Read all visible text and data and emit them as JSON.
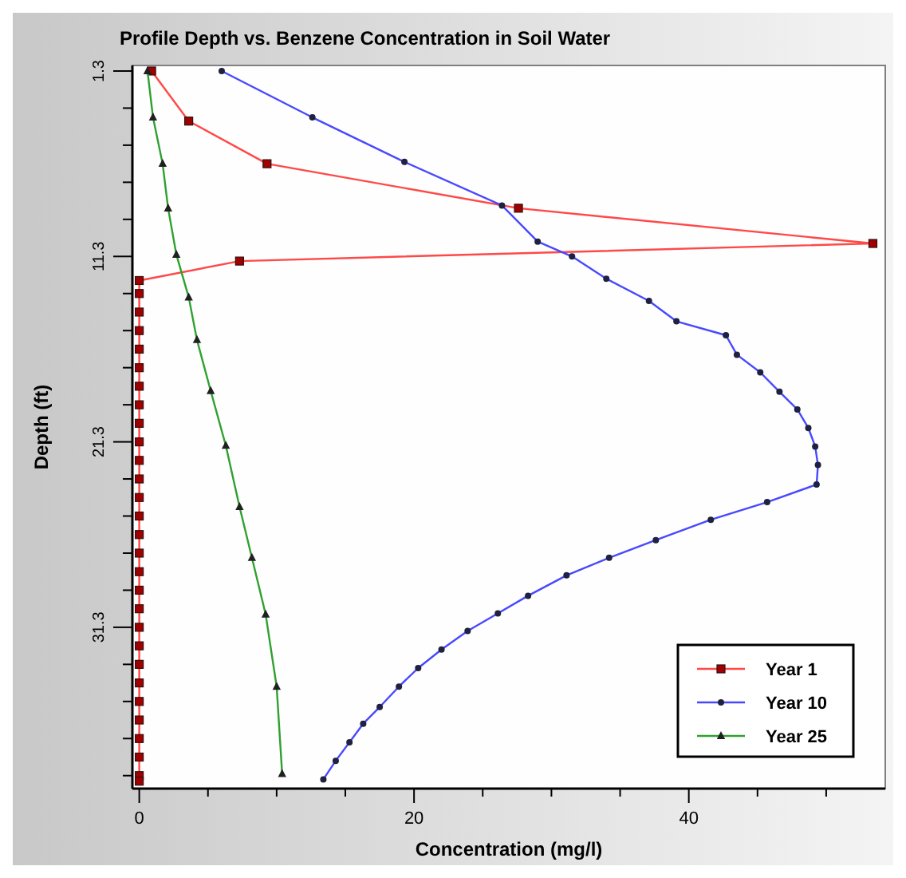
{
  "chart_data": {
    "type": "line",
    "title": "Profile Depth vs. Benzene Concentration in Soil Water",
    "xlabel": "Concentration (mg/l)",
    "ylabel": "Depth (ft)",
    "xlim": [
      -0.5,
      54.3
    ],
    "ylim": [
      40,
      1
    ],
    "xticks": [
      0,
      {
        "value": 5,
        "label": null
      },
      {
        "value": 10,
        "label": null
      },
      {
        "value": 15,
        "label": null
      },
      20,
      {
        "value": 25,
        "label": null
      },
      {
        "value": 30,
        "label": null
      },
      {
        "value": 35,
        "label": null
      },
      40,
      {
        "value": 45,
        "label": null
      },
      {
        "value": 50,
        "label": null
      }
    ],
    "yticks": [
      1.3,
      {
        "value": 3.3,
        "label": null
      },
      {
        "value": 5.3,
        "label": null
      },
      {
        "value": 7.3,
        "label": null
      },
      {
        "value": 9.3,
        "label": null
      },
      11.3,
      {
        "value": 13.3,
        "label": null
      },
      {
        "value": 15.3,
        "label": null
      },
      {
        "value": 17.3,
        "label": null
      },
      {
        "value": 19.3,
        "label": null
      },
      21.3,
      {
        "value": 23.3,
        "label": null
      },
      {
        "value": 25.3,
        "label": null
      },
      {
        "value": 27.3,
        "label": null
      },
      {
        "value": 29.3,
        "label": null
      },
      31.3,
      {
        "value": 33.3,
        "label": null
      },
      {
        "value": 35.3,
        "label": null
      },
      {
        "value": 37.3,
        "label": null
      },
      {
        "value": 39.3,
        "label": null
      }
    ],
    "grid": false,
    "legend": "bottom right",
    "line_style": "solid",
    "series": [
      {
        "name": "Year 1",
        "color": "#ff4848",
        "marker": "square",
        "x": [
          0.9,
          3.6,
          9.3,
          27.6,
          53.4,
          7.3,
          0,
          0,
          0,
          0,
          0,
          0,
          0,
          0,
          0,
          0,
          0,
          0,
          0,
          0,
          0,
          0,
          0,
          0,
          0,
          0,
          0,
          0,
          0,
          0,
          0,
          0,
          0,
          0,
          0
        ],
        "values": [
          1.3,
          4,
          6.3,
          8.7,
          10.6,
          11.55,
          12.6,
          13.3,
          14.3,
          15.3,
          16.3,
          17.3,
          18.3,
          19.3,
          20.3,
          21.3,
          22.3,
          23.3,
          24.3,
          25.3,
          26.3,
          27.3,
          28.3,
          29.3,
          30.3,
          31.3,
          32.3,
          33.3,
          34.3,
          35.3,
          36.3,
          37.3,
          38.3,
          39.3,
          39.6
        ]
      },
      {
        "name": "Year 10",
        "color": "#4848ff",
        "marker": "circle",
        "x": [
          6.0,
          12.6,
          19.3,
          26.4,
          29.0,
          31.5,
          34.0,
          37.1,
          39.1,
          42.7,
          43.5,
          45.2,
          46.6,
          47.9,
          48.7,
          49.2,
          49.4,
          49.3,
          45.7,
          41.6,
          37.6,
          34.2,
          31.1,
          28.3,
          26.1,
          23.9,
          22.0,
          20.3,
          18.9,
          17.5,
          16.3,
          15.3,
          14.3,
          13.4
        ],
        "values": [
          1.3,
          3.8,
          6.2,
          8.55,
          10.5,
          11.3,
          12.5,
          13.7,
          14.8,
          15.55,
          16.6,
          17.55,
          18.6,
          19.55,
          20.55,
          21.55,
          22.55,
          23.6,
          24.55,
          25.5,
          26.6,
          27.55,
          28.5,
          29.6,
          30.55,
          31.5,
          32.5,
          33.5,
          34.5,
          35.6,
          36.5,
          37.5,
          38.5,
          39.5
        ]
      },
      {
        "name": "Year 25",
        "color": "#30a030",
        "marker": "triangle",
        "x": [
          0.6,
          1.0,
          1.7,
          2.1,
          2.7,
          3.6,
          4.2,
          5.2,
          6.3,
          7.3,
          8.2,
          9.2,
          10.0,
          10.4
        ],
        "values": [
          1.3,
          3.8,
          6.3,
          8.7,
          11.2,
          13.5,
          15.8,
          18.55,
          21.5,
          24.8,
          27.55,
          30.6,
          34.5,
          39.2
        ]
      }
    ]
  }
}
